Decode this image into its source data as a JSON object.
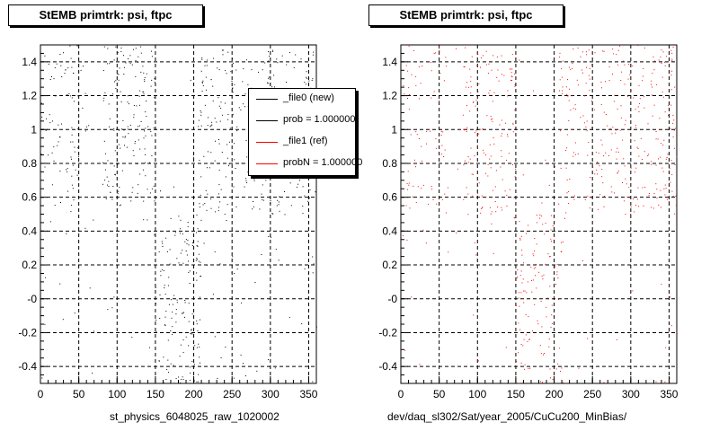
{
  "colors": {
    "new": "#000000",
    "ref": "#ff0000"
  },
  "chart_data": [
    {
      "type": "scatter",
      "title": "StEMB primtrk: psi, ftpc",
      "xlabel": "st_physics_6048025_raw_1020002",
      "xlim": [
        0,
        360
      ],
      "ylim": [
        -0.5,
        1.5
      ],
      "x_ticks": [
        0,
        50,
        100,
        150,
        200,
        250,
        300,
        350
      ],
      "y_ticks": [
        "1.4",
        "1.2",
        "1",
        "0.8",
        "0.6",
        "0.4",
        "0.2",
        "-0",
        "-0.2",
        "-0.4"
      ],
      "grid": true,
      "color": "#000000",
      "series": [
        {
          "x": [
            0,
            60
          ],
          "y": [
            0.55,
            1.5
          ],
          "density": 0.6
        },
        {
          "x": [
            80,
            150
          ],
          "y": [
            0.55,
            1.5
          ],
          "density": 1.0
        },
        {
          "x": [
            150,
            210
          ],
          "y": [
            -0.5,
            0.5
          ],
          "density": 1.0
        },
        {
          "x": [
            205,
            360
          ],
          "y": [
            0.5,
            1.5
          ],
          "density": 0.8
        },
        {
          "x": [
            0,
            360
          ],
          "y": [
            -0.5,
            1.5
          ],
          "density": 0.08
        }
      ],
      "legend": {
        "placement": "top-right",
        "entries": [
          {
            "label": "_file0 (new)",
            "color": "#000000"
          },
          {
            "label": "prob = 1.000000",
            "color": "#000000"
          },
          {
            "label": "_file1 (ref)",
            "color": "#ff0000"
          },
          {
            "label": "probN = 1.000000",
            "color": "#ff0000"
          }
        ]
      }
    },
    {
      "type": "scatter",
      "title": "StEMB primtrk: psi, ftpc",
      "xlabel": "dev/daq_sl302/Sat/year_2005/CuCu200_MinBias/",
      "xlim": [
        0,
        360
      ],
      "ylim": [
        -0.5,
        1.5
      ],
      "x_ticks": [
        0,
        50,
        100,
        150,
        200,
        250,
        300,
        350
      ],
      "y_ticks": [
        "1.4",
        "1.2",
        "1",
        "0.8",
        "0.6",
        "0.4",
        "0.2",
        "-0",
        "-0.2",
        "-0.4"
      ],
      "grid": true,
      "color": "#ff0000",
      "series": [
        {
          "x": [
            0,
            60
          ],
          "y": [
            0.55,
            1.5
          ],
          "density": 0.5
        },
        {
          "x": [
            80,
            150
          ],
          "y": [
            0.5,
            1.5
          ],
          "density": 0.9
        },
        {
          "x": [
            150,
            210
          ],
          "y": [
            -0.5,
            0.5
          ],
          "density": 0.9
        },
        {
          "x": [
            205,
            360
          ],
          "y": [
            0.5,
            1.5
          ],
          "density": 0.8
        },
        {
          "x": [
            0,
            360
          ],
          "y": [
            -0.5,
            1.5
          ],
          "density": 0.06
        }
      ]
    }
  ]
}
